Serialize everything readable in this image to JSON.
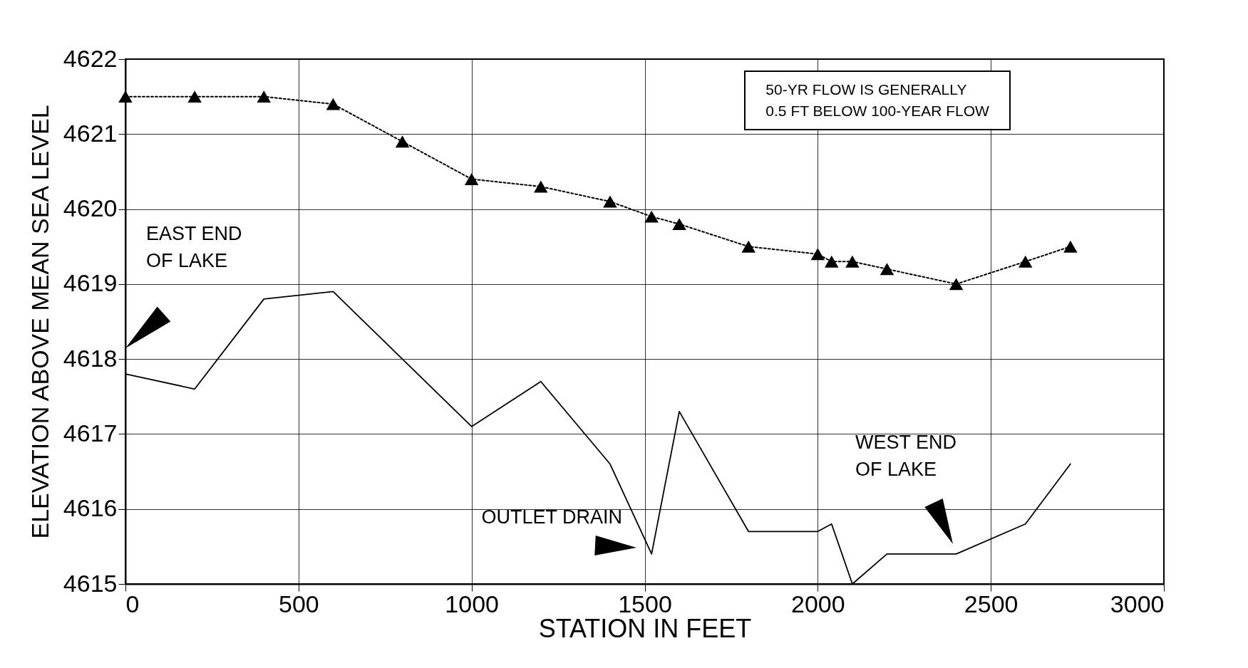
{
  "chart_data": {
    "type": "line",
    "xlabel": "STATION IN FEET",
    "ylabel": "ELEVATION ABOVE MEAN SEA LEVEL",
    "xlim": [
      0,
      3000
    ],
    "xticks": [
      0,
      500,
      1000,
      1500,
      2000,
      2500,
      3000
    ],
    "ylim": [
      4615,
      4622
    ],
    "yticks": [
      4615,
      4616,
      4617,
      4618,
      4619,
      4620,
      4621,
      4622
    ],
    "grid": true,
    "series": [
      {
        "color": "#000000",
        "line_style": "dotted",
        "marker": "triangle",
        "x": [
          0,
          200,
          400,
          600,
          800,
          1000,
          1200,
          1400,
          1520,
          1600,
          1800,
          2000,
          2040,
          2100,
          2200,
          2400,
          2600,
          2730
        ],
        "values": [
          4621.5,
          4621.5,
          4621.5,
          4621.4,
          4620.9,
          4620.4,
          4620.3,
          4620.1,
          4619.9,
          4619.8,
          4619.5,
          4619.4,
          4619.3,
          4619.3,
          4619.2,
          4619.0,
          4619.3,
          4619.5
        ]
      },
      {
        "color": "#000000",
        "line_style": "solid",
        "marker": "none",
        "x": [
          0,
          200,
          400,
          600,
          800,
          1000,
          1200,
          1400,
          1520,
          1600,
          1800,
          2000,
          2040,
          2100,
          2200,
          2400,
          2600,
          2730
        ],
        "values": [
          4617.8,
          4617.6,
          4618.8,
          4618.9,
          4618.0,
          4617.1,
          4617.7,
          4616.6,
          4615.4,
          4617.3,
          4615.7,
          4615.7,
          4615.8,
          4615.0,
          4615.4,
          4615.4,
          4615.8,
          4616.6
        ]
      }
    ],
    "annotations": [
      "50-YR FLOW IS GENERALLY\n0.5 FT BELOW 100-YEAR FLOW",
      "EAST END\nOF LAKE",
      "OUTLET DRAIN",
      "WEST END\nOF LAKE"
    ]
  }
}
